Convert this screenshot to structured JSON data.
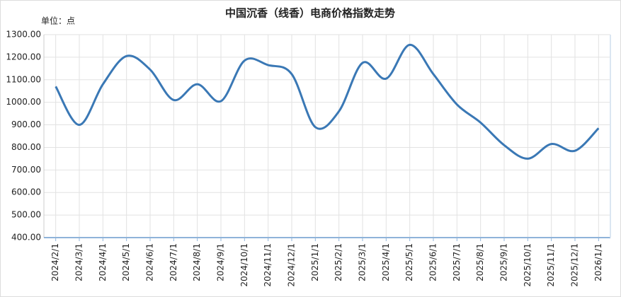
{
  "chart_data": {
    "type": "line",
    "title": "中国沉香（线香）电商价格指数走势",
    "unit_label": "单位：点",
    "categories": [
      "2024/2/1",
      "2024/3/1",
      "2024/4/1",
      "2024/5/1",
      "2024/6/1",
      "2024/7/1",
      "2024/8/1",
      "2024/9/1",
      "2024/10/1",
      "2024/11/1",
      "2024/12/1",
      "2025/1/1",
      "2025/2/1",
      "2025/3/1",
      "2025/4/1",
      "2025/5/1",
      "2025/6/1",
      "2025/7/1",
      "2025/8/1",
      "2025/9/1",
      "2025/10/1",
      "2025/11/1",
      "2025/12/1",
      "2026/1/1"
    ],
    "values": [
      1070,
      900,
      1080,
      1205,
      1145,
      1010,
      1080,
      1005,
      1185,
      1165,
      1125,
      890,
      960,
      1175,
      1105,
      1255,
      1125,
      990,
      910,
      810,
      750,
      815,
      785,
      885
    ],
    "color": "#3a78b5",
    "smooth": true,
    "grid": true,
    "ylim": [
      400,
      1300
    ],
    "yticks": [
      {
        "value": 400,
        "label": "400.00"
      },
      {
        "value": 500,
        "label": "500.00"
      },
      {
        "value": 600,
        "label": "600.00"
      },
      {
        "value": 700,
        "label": "700.00"
      },
      {
        "value": 800,
        "label": "800.00"
      },
      {
        "value": 900,
        "label": "900.00"
      },
      {
        "value": 1000,
        "label": "1000.00"
      },
      {
        "value": 1100,
        "label": "1100.00"
      },
      {
        "value": 1200,
        "label": "1200.00"
      },
      {
        "value": 1300,
        "label": "1300.00"
      }
    ]
  }
}
